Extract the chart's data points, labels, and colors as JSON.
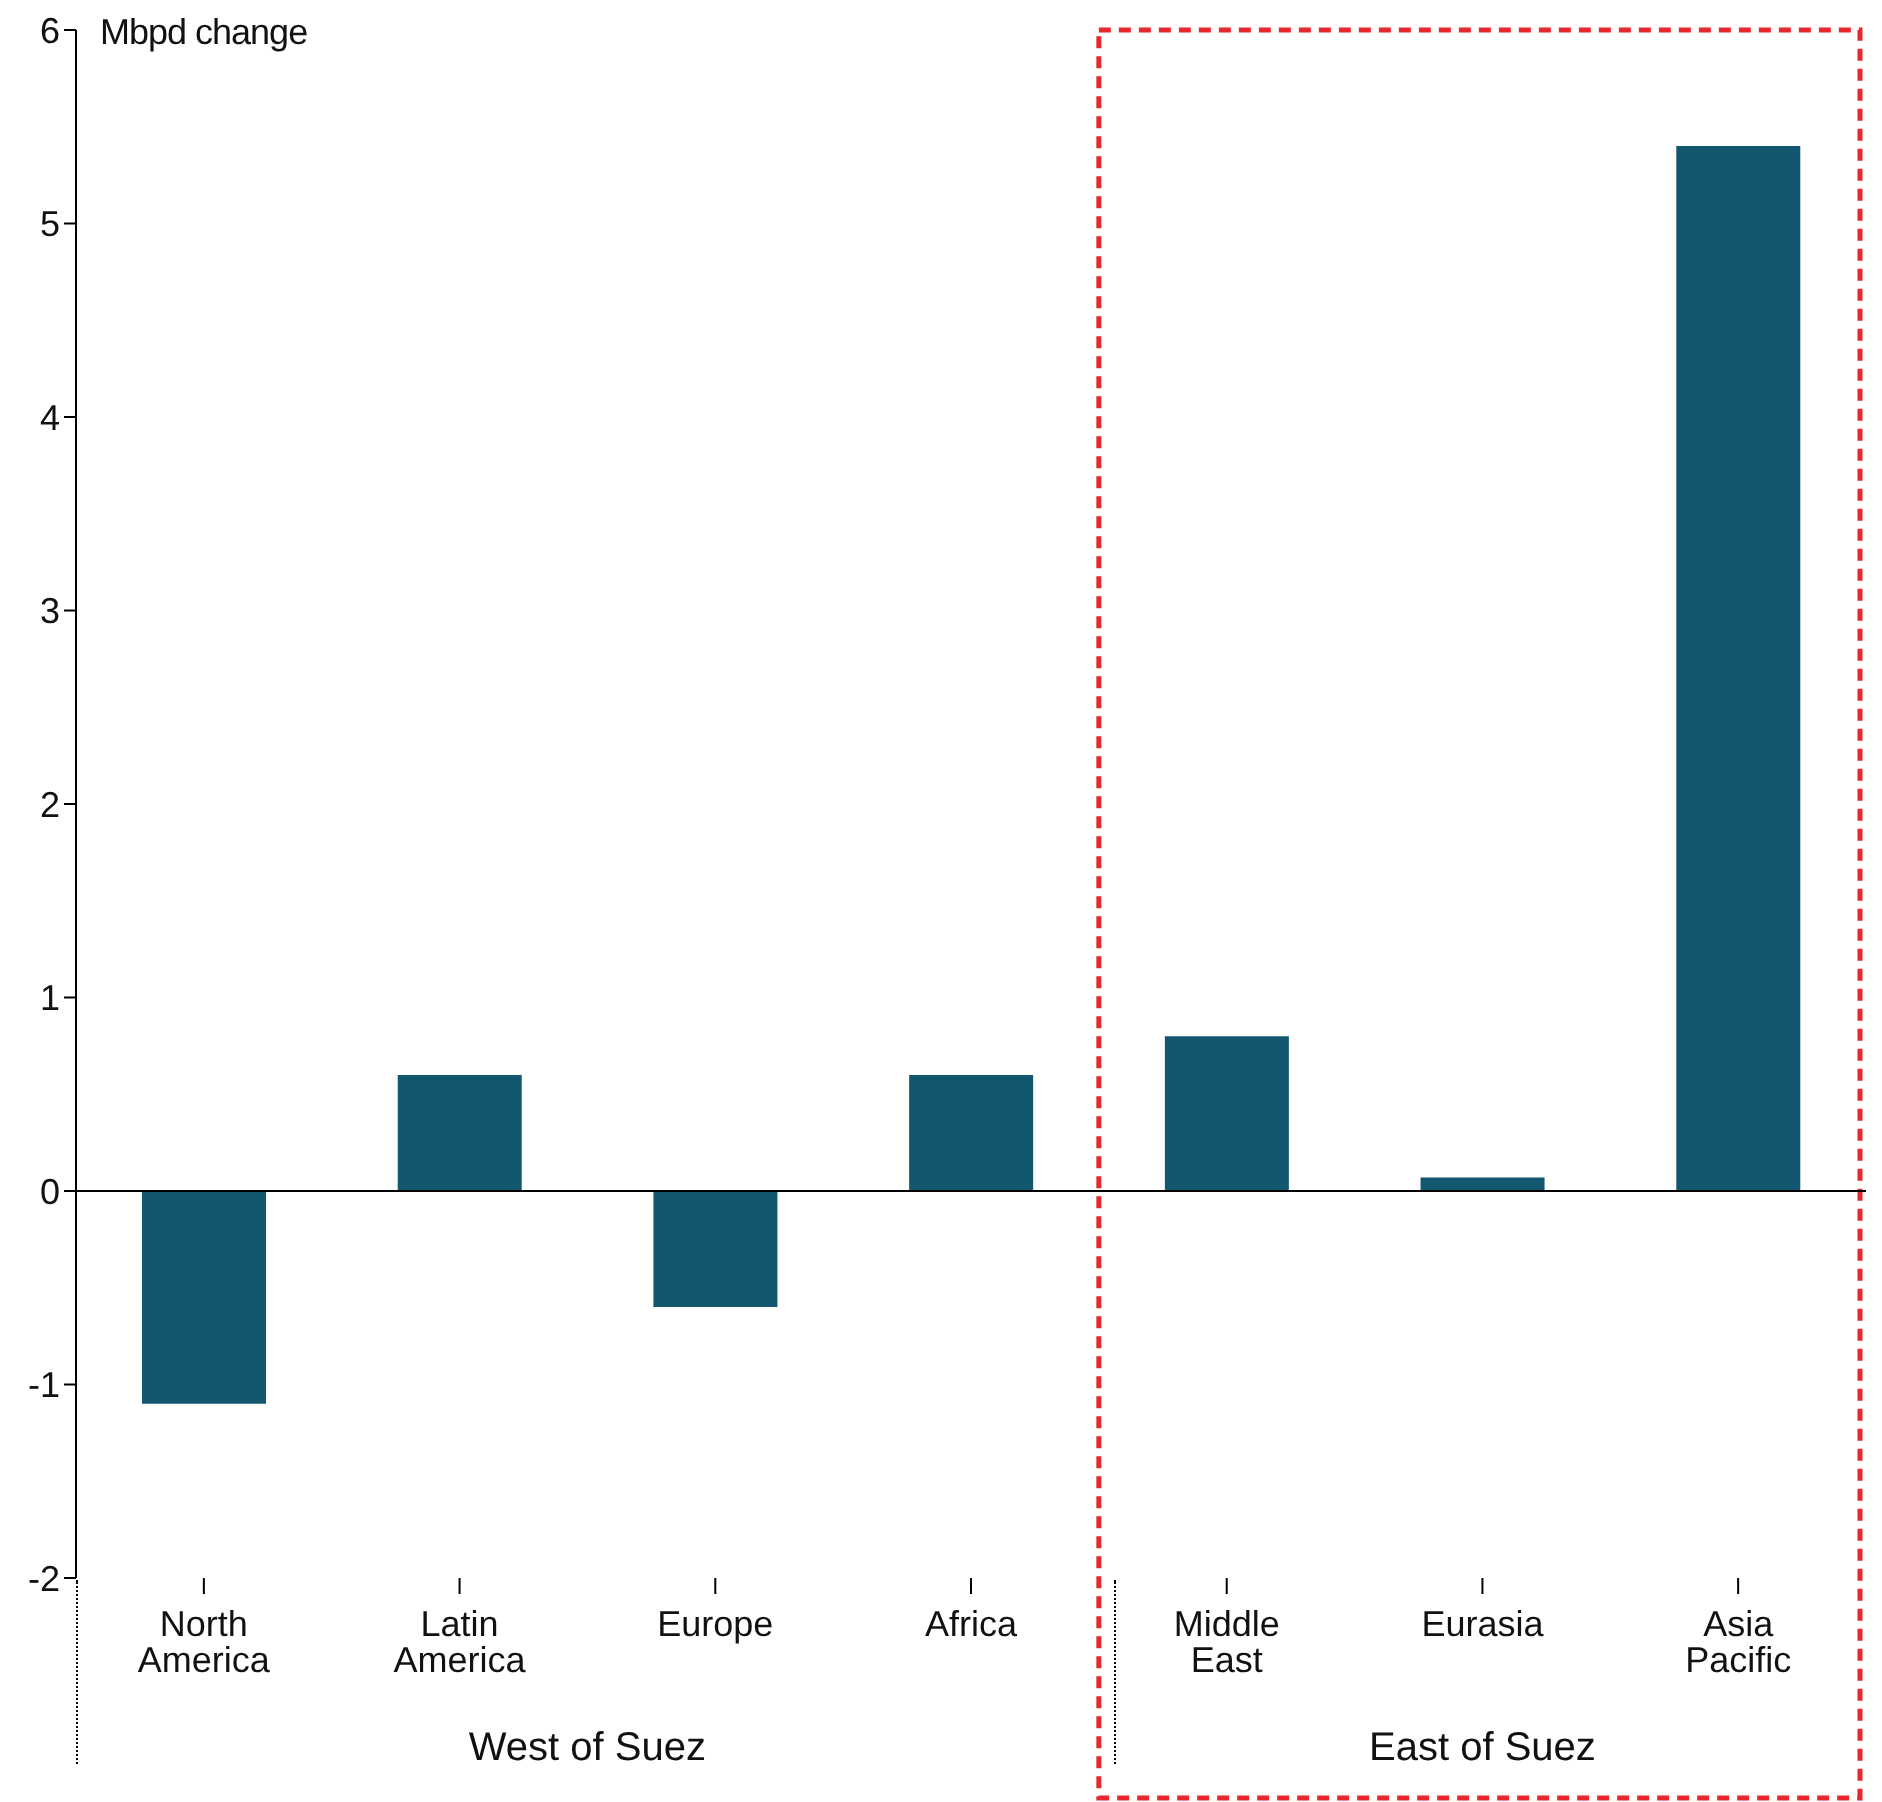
{
  "chart_data": {
    "type": "bar",
    "ylabel": "Mbpd change",
    "categories": [
      "North America",
      "Latin America",
      "Europe",
      "Africa",
      "Middle East",
      "Eurasia",
      "Asia Pacific"
    ],
    "values": [
      -1.1,
      0.6,
      -0.6,
      0.6,
      0.8,
      0.07,
      5.4
    ],
    "color": "#12566f",
    "ylim": [
      -2,
      6
    ],
    "yticks": [
      -2,
      -1,
      0,
      1,
      2,
      3,
      4,
      5,
      6
    ],
    "grid": false,
    "legend": false,
    "ref_lines": [
      {
        "axis": "y",
        "value": 0,
        "color": "#000000"
      }
    ],
    "annotations": [
      "West of Suez",
      "East of Suez"
    ]
  }
}
